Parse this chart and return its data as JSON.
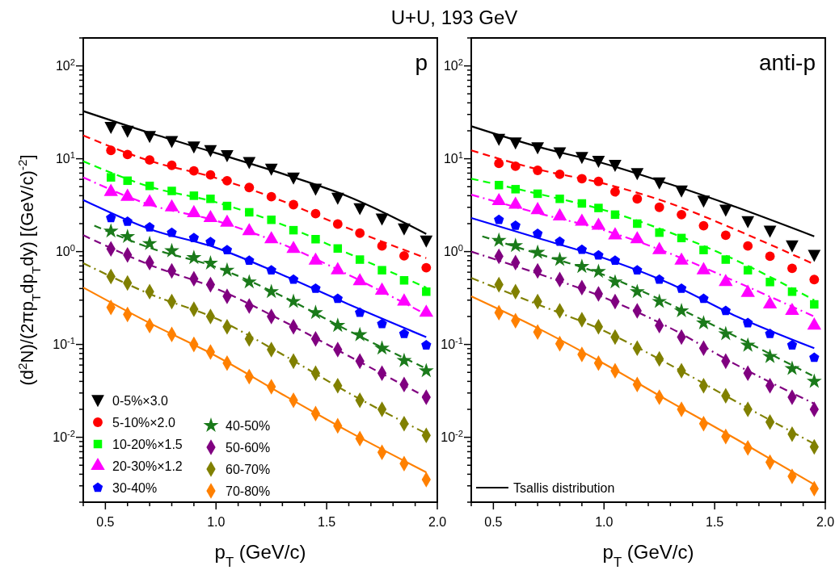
{
  "chart_data": [
    {
      "type": "scatter",
      "title": "U+U, 193 GeV",
      "xlabel": "p$_{T}$ (GeV/c)",
      "ylabel": "(d$^{2}$N)/(2πp$_{T}$dp$_{T}$dy) [(GeV/c)$^{-2}$]",
      "annotations": [
        "p"
      ],
      "log": "y",
      "legend": "bottom left",
      "xlim": [
        0.4,
        2.0
      ],
      "xticks": [
        {
          "value": 0.4,
          "label": null
        },
        {
          "value": 0.5,
          "label": "0.5"
        },
        {
          "value": 0.6,
          "label": null
        },
        {
          "value": 0.7,
          "label": null
        },
        {
          "value": 0.8,
          "label": null
        },
        {
          "value": 0.9,
          "label": null
        },
        {
          "value": 1.0,
          "label": "1.0"
        },
        {
          "value": 1.1,
          "label": null
        },
        {
          "value": 1.2,
          "label": null
        },
        {
          "value": 1.3,
          "label": null
        },
        {
          "value": 1.4,
          "label": null
        },
        {
          "value": 1.5,
          "label": "1.5"
        },
        {
          "value": 1.6,
          "label": null
        },
        {
          "value": 1.7,
          "label": null
        },
        {
          "value": 1.8,
          "label": null
        },
        {
          "value": 1.9,
          "label": null
        },
        {
          "value": 2.0,
          "label": "2.0"
        }
      ],
      "ylim": [
        0.002,
        200
      ],
      "yticks": [
        {
          "value": 0.002,
          "label": null
        },
        {
          "value": 0.003,
          "label": null
        },
        {
          "value": 0.004,
          "label": null
        },
        {
          "value": 0.005,
          "label": null
        },
        {
          "value": 0.006,
          "label": null
        },
        {
          "value": 0.007,
          "label": null
        },
        {
          "value": 0.008,
          "label": null
        },
        {
          "value": 0.009,
          "label": null
        },
        {
          "value": 0.01,
          "label": "10$^{-2}$"
        },
        {
          "value": 0.02,
          "label": null
        },
        {
          "value": 0.03,
          "label": null
        },
        {
          "value": 0.04,
          "label": null
        },
        {
          "value": 0.05,
          "label": null
        },
        {
          "value": 0.06,
          "label": null
        },
        {
          "value": 0.07,
          "label": null
        },
        {
          "value": 0.08,
          "label": null
        },
        {
          "value": 0.09,
          "label": null
        },
        {
          "value": 0.1,
          "label": "10$^{-1}$"
        },
        {
          "value": 0.2,
          "label": null
        },
        {
          "value": 0.3,
          "label": null
        },
        {
          "value": 0.4,
          "label": null
        },
        {
          "value": 0.5,
          "label": null
        },
        {
          "value": 0.6,
          "label": null
        },
        {
          "value": 0.7,
          "label": null
        },
        {
          "value": 0.8,
          "label": null
        },
        {
          "value": 0.9,
          "label": null
        },
        {
          "value": 1,
          "label": "10$^{0}$"
        },
        {
          "value": 2,
          "label": null
        },
        {
          "value": 3,
          "label": null
        },
        {
          "value": 4,
          "label": null
        },
        {
          "value": 5,
          "label": null
        },
        {
          "value": 6,
          "label": null
        },
        {
          "value": 7,
          "label": null
        },
        {
          "value": 8,
          "label": null
        },
        {
          "value": 9,
          "label": null
        },
        {
          "value": 10,
          "label": "10$^{1}$"
        },
        {
          "value": 20,
          "label": null
        },
        {
          "value": 30,
          "label": null
        },
        {
          "value": 40,
          "label": null
        },
        {
          "value": 50,
          "label": null
        },
        {
          "value": 60,
          "label": null
        },
        {
          "value": 70,
          "label": null
        },
        {
          "value": 80,
          "label": null
        },
        {
          "value": 90,
          "label": null
        },
        {
          "value": 100,
          "label": "10$^{2}$"
        },
        {
          "value": 200,
          "label": null
        }
      ],
      "x": [
        0.525,
        0.6,
        0.7,
        0.8,
        0.9,
        0.975,
        1.05,
        1.15,
        1.25,
        1.35,
        1.45,
        1.55,
        1.65,
        1.75,
        1.85,
        1.95
      ],
      "series": [
        {
          "name": "0-5%×3.0",
          "color": "#000000",
          "marker": "triangle-down",
          "values": [
            21.8,
            19.8,
            17.4,
            15.3,
            13.4,
            12.2,
            10.8,
            9.1,
            7.7,
            6.2,
            4.7,
            3.75,
            2.9,
            2.24,
            1.75,
            1.3
          ]
        },
        {
          "name": "5-10%×2.0",
          "color": "#ff0000",
          "marker": "circle",
          "values": [
            12.3,
            11.1,
            9.7,
            8.5,
            7.4,
            6.7,
            5.8,
            4.9,
            3.9,
            3.2,
            2.56,
            1.98,
            1.58,
            1.15,
            0.9,
            0.67
          ]
        },
        {
          "name": "10-20%×1.5",
          "color": "#00ff00",
          "marker": "square",
          "values": [
            6.3,
            5.8,
            5.1,
            4.5,
            4.0,
            3.7,
            3.1,
            2.65,
            2.2,
            1.7,
            1.36,
            1.08,
            0.82,
            0.63,
            0.49,
            0.37
          ]
        },
        {
          "name": "20-30%×1.2",
          "color": "#ff00ff",
          "marker": "triangle",
          "values": [
            4.4,
            3.9,
            3.4,
            3.0,
            2.6,
            2.3,
            2.05,
            1.66,
            1.36,
            1.07,
            0.8,
            0.63,
            0.48,
            0.38,
            0.29,
            0.22
          ]
        },
        {
          "name": "30-40%",
          "color": "#0000ff",
          "values": [
            2.3,
            2.1,
            1.83,
            1.6,
            1.4,
            1.27,
            1.04,
            0.8,
            0.63,
            0.5,
            0.4,
            0.31,
            0.22,
            0.166,
            0.13,
            0.098
          ]
        },
        {
          "name": "40-50%",
          "color": "#1a7a1a",
          "marker": "star",
          "values": [
            1.66,
            1.45,
            1.22,
            1.02,
            0.86,
            0.75,
            0.63,
            0.47,
            0.37,
            0.29,
            0.22,
            0.16,
            0.127,
            0.091,
            0.067,
            0.052
          ]
        },
        {
          "name": "50-60%",
          "color": "#800080",
          "marker": "diamond",
          "values": [
            1.07,
            0.92,
            0.76,
            0.62,
            0.51,
            0.44,
            0.33,
            0.26,
            0.2,
            0.155,
            0.115,
            0.088,
            0.066,
            0.049,
            0.037,
            0.027
          ]
        },
        {
          "name": "60-70%",
          "color": "#808000",
          "marker": "diamond",
          "values": [
            0.54,
            0.46,
            0.37,
            0.29,
            0.24,
            0.2,
            0.155,
            0.115,
            0.088,
            0.066,
            0.049,
            0.036,
            0.025,
            0.02,
            0.014,
            0.0105
          ]
        },
        {
          "name": "70-80%",
          "color": "#ff8000",
          "marker": "diamond",
          "values": [
            0.25,
            0.21,
            0.16,
            0.128,
            0.1,
            0.083,
            0.063,
            0.045,
            0.035,
            0.025,
            0.018,
            0.0133,
            0.0097,
            0.0069,
            0.0052,
            0.0035
          ]
        },
        {
          "type": "line",
          "color": "#000000",
          "line_style": "solid",
          "x": [
            0.4,
            0.7,
            1.0,
            1.3,
            1.6,
            1.95
          ],
          "values": [
            32.6,
            19,
            11.5,
            6.9,
            3.9,
            1.55
          ]
        },
        {
          "type": "line",
          "color": "#ff0000",
          "line_style": "dashed",
          "x": [
            0.4,
            0.7,
            1.0,
            1.3,
            1.6,
            1.95
          ],
          "values": [
            17.8,
            9.5,
            6.2,
            3.5,
            1.77,
            0.85
          ]
        },
        {
          "type": "line",
          "color": "#00ff00",
          "line_style": "dashed",
          "x": [
            0.4,
            0.7,
            1.0,
            1.3,
            1.6,
            1.95
          ],
          "values": [
            9.4,
            5.0,
            3.4,
            1.95,
            0.95,
            0.41
          ]
        },
        {
          "type": "line",
          "color": "#ff00ff",
          "line_style": "dashdot",
          "x": [
            0.4,
            0.7,
            1.0,
            1.3,
            1.6,
            1.95
          ],
          "values": [
            6.3,
            3.2,
            2.15,
            1.2,
            0.56,
            0.21
          ]
        },
        {
          "type": "line",
          "color": "#0000ff",
          "line_style": "solid",
          "x": [
            0.4,
            0.7,
            1.0,
            1.3,
            1.6,
            1.95
          ],
          "values": [
            3.6,
            1.75,
            1.1,
            0.56,
            0.27,
            0.12
          ]
        },
        {
          "type": "line",
          "color": "#1a7a1a",
          "line_style": "dashed",
          "x": [
            0.45,
            0.7,
            1.0,
            1.3,
            1.6,
            1.95
          ],
          "values": [
            1.9,
            1.1,
            0.68,
            0.33,
            0.14,
            0.055
          ]
        },
        {
          "type": "line",
          "color": "#800080",
          "line_style": "dashed",
          "x": [
            0.4,
            0.7,
            1.0,
            1.3,
            1.6,
            1.95
          ],
          "values": [
            1.5,
            0.72,
            0.4,
            0.18,
            0.075,
            0.027
          ]
        },
        {
          "type": "line",
          "color": "#808000",
          "line_style": "dashdot",
          "x": [
            0.4,
            0.7,
            1.0,
            1.3,
            1.6,
            1.95
          ],
          "values": [
            0.75,
            0.35,
            0.19,
            0.078,
            0.03,
            0.011
          ]
        },
        {
          "type": "line",
          "color": "#ff8000",
          "line_style": "solid",
          "x": [
            0.4,
            0.7,
            1.0,
            1.3,
            1.6,
            1.95
          ],
          "values": [
            0.41,
            0.17,
            0.075,
            0.029,
            0.0115,
            0.0042
          ]
        }
      ]
    },
    {
      "type": "scatter",
      "xlabel": "p$_{T}$ (GeV/c)",
      "annotations": [
        "anti-p"
      ],
      "log": "y",
      "legend": "bottom left",
      "xlim": [
        0.4,
        2.0
      ],
      "xticks": [
        {
          "value": 0.4,
          "label": null
        },
        {
          "value": 0.5,
          "label": "0.5"
        },
        {
          "value": 0.6,
          "label": null
        },
        {
          "value": 0.7,
          "label": null
        },
        {
          "value": 0.8,
          "label": null
        },
        {
          "value": 0.9,
          "label": null
        },
        {
          "value": 1.0,
          "label": "1.0"
        },
        {
          "value": 1.1,
          "label": null
        },
        {
          "value": 1.2,
          "label": null
        },
        {
          "value": 1.3,
          "label": null
        },
        {
          "value": 1.4,
          "label": null
        },
        {
          "value": 1.5,
          "label": "1.5"
        },
        {
          "value": 1.6,
          "label": null
        },
        {
          "value": 1.7,
          "label": null
        },
        {
          "value": 1.8,
          "label": null
        },
        {
          "value": 1.9,
          "label": null
        },
        {
          "value": 2.0,
          "label": "2.0"
        }
      ],
      "ylim": [
        0.002,
        200
      ],
      "yticks": [
        {
          "value": 0.002,
          "label": null
        },
        {
          "value": 0.003,
          "label": null
        },
        {
          "value": 0.004,
          "label": null
        },
        {
          "value": 0.005,
          "label": null
        },
        {
          "value": 0.006,
          "label": null
        },
        {
          "value": 0.007,
          "label": null
        },
        {
          "value": 0.008,
          "label": null
        },
        {
          "value": 0.009,
          "label": null
        },
        {
          "value": 0.01,
          "label": "10$^{-2}$"
        },
        {
          "value": 0.02,
          "label": null
        },
        {
          "value": 0.03,
          "label": null
        },
        {
          "value": 0.04,
          "label": null
        },
        {
          "value": 0.05,
          "label": null
        },
        {
          "value": 0.06,
          "label": null
        },
        {
          "value": 0.07,
          "label": null
        },
        {
          "value": 0.08,
          "label": null
        },
        {
          "value": 0.09,
          "label": null
        },
        {
          "value": 0.1,
          "label": "10$^{-1}$"
        },
        {
          "value": 0.2,
          "label": null
        },
        {
          "value": 0.3,
          "label": null
        },
        {
          "value": 0.4,
          "label": null
        },
        {
          "value": 0.5,
          "label": null
        },
        {
          "value": 0.6,
          "label": null
        },
        {
          "value": 0.7,
          "label": null
        },
        {
          "value": 0.8,
          "label": null
        },
        {
          "value": 0.9,
          "label": null
        },
        {
          "value": 1,
          "label": "10$^{0}$"
        },
        {
          "value": 2,
          "label": null
        },
        {
          "value": 3,
          "label": null
        },
        {
          "value": 4,
          "label": null
        },
        {
          "value": 5,
          "label": null
        },
        {
          "value": 6,
          "label": null
        },
        {
          "value": 7,
          "label": null
        },
        {
          "value": 8,
          "label": null
        },
        {
          "value": 9,
          "label": null
        },
        {
          "value": 10,
          "label": "10$^{1}$"
        },
        {
          "value": 20,
          "label": null
        },
        {
          "value": 30,
          "label": null
        },
        {
          "value": 40,
          "label": null
        },
        {
          "value": 50,
          "label": null
        },
        {
          "value": 60,
          "label": null
        },
        {
          "value": 70,
          "label": null
        },
        {
          "value": 80,
          "label": null
        },
        {
          "value": 90,
          "label": null
        },
        {
          "value": 100,
          "label": "10$^{2}$"
        },
        {
          "value": 200,
          "label": null
        }
      ],
      "x": [
        0.525,
        0.6,
        0.7,
        0.8,
        0.9,
        0.975,
        1.05,
        1.15,
        1.25,
        1.35,
        1.45,
        1.55,
        1.65,
        1.75,
        1.85,
        1.95
      ],
      "series": [
        {
          "color": "#000000",
          "marker": "triangle-down",
          "values": [
            16.2,
            14.8,
            13.1,
            11.6,
            10.3,
            9.4,
            8.5,
            6.9,
            5.5,
            4.5,
            3.5,
            2.8,
            2.1,
            1.66,
            1.15,
            0.91
          ]
        },
        {
          "color": "#ff0000",
          "marker": "circle",
          "values": [
            8.9,
            8.3,
            7.5,
            6.8,
            6.1,
            5.7,
            4.4,
            3.7,
            3.0,
            2.5,
            1.9,
            1.5,
            1.15,
            0.89,
            0.66,
            0.5
          ]
        },
        {
          "color": "#00ff00",
          "marker": "square",
          "values": [
            5.2,
            4.7,
            4.2,
            3.7,
            3.3,
            2.95,
            2.5,
            2.0,
            1.6,
            1.4,
            1.04,
            0.82,
            0.63,
            0.47,
            0.37,
            0.27
          ]
        },
        {
          "color": "#ff00ff",
          "marker": "triangle",
          "values": [
            3.5,
            3.2,
            2.8,
            2.4,
            2.1,
            1.9,
            1.5,
            1.36,
            1.04,
            0.8,
            0.63,
            0.47,
            0.36,
            0.27,
            0.23,
            0.16
          ]
        },
        {
          "color": "#0000ff",
          "values": [
            2.2,
            1.9,
            1.56,
            1.28,
            1.05,
            0.91,
            0.8,
            0.63,
            0.5,
            0.4,
            0.31,
            0.23,
            0.17,
            0.13,
            0.098,
            0.072
          ]
        },
        {
          "color": "#1a7a1a",
          "marker": "star",
          "values": [
            1.32,
            1.16,
            0.98,
            0.82,
            0.69,
            0.61,
            0.47,
            0.37,
            0.29,
            0.23,
            0.17,
            0.13,
            0.098,
            0.074,
            0.055,
            0.04
          ]
        },
        {
          "color": "#800080",
          "marker": "diamond",
          "values": [
            0.89,
            0.76,
            0.62,
            0.5,
            0.41,
            0.35,
            0.29,
            0.23,
            0.16,
            0.12,
            0.091,
            0.066,
            0.049,
            0.036,
            0.027,
            0.02
          ]
        },
        {
          "color": "#808000",
          "marker": "diamond",
          "values": [
            0.44,
            0.37,
            0.29,
            0.23,
            0.185,
            0.155,
            0.12,
            0.091,
            0.07,
            0.052,
            0.036,
            0.028,
            0.02,
            0.0146,
            0.0108,
            0.0079
          ]
        },
        {
          "color": "#ff8000",
          "marker": "diamond",
          "values": [
            0.22,
            0.18,
            0.136,
            0.102,
            0.078,
            0.063,
            0.052,
            0.037,
            0.027,
            0.02,
            0.014,
            0.0102,
            0.0077,
            0.0054,
            0.0038,
            0.0028
          ]
        },
        {
          "type": "line",
          "name": "Tsallis distribution",
          "color": "#000000",
          "line_style": "solid",
          "x": [
            0.4,
            0.7,
            1.0,
            1.3,
            1.6,
            1.95
          ],
          "values": [
            22.4,
            13.5,
            8.9,
            5.3,
            3.0,
            1.46
          ]
        },
        {
          "type": "line",
          "color": "#ff0000",
          "line_style": "dashed",
          "x": [
            0.4,
            0.7,
            1.0,
            1.3,
            1.6,
            1.95
          ],
          "values": [
            12.3,
            7.7,
            5.4,
            3.3,
            1.7,
            0.73
          ]
        },
        {
          "type": "line",
          "color": "#00ff00",
          "line_style": "dashed",
          "x": [
            0.4,
            0.7,
            1.0,
            1.3,
            1.6,
            1.95
          ],
          "values": [
            6.1,
            4.2,
            2.8,
            1.6,
            0.8,
            0.3
          ]
        },
        {
          "type": "line",
          "color": "#ff00ff",
          "line_style": "dashdot",
          "x": [
            0.4,
            0.7,
            1.0,
            1.3,
            1.6,
            1.95
          ],
          "values": [
            4.1,
            2.6,
            1.7,
            0.95,
            0.47,
            0.2
          ]
        },
        {
          "type": "line",
          "color": "#0000ff",
          "line_style": "solid",
          "x": [
            0.4,
            0.7,
            1.0,
            1.3,
            1.6,
            1.95
          ],
          "values": [
            2.3,
            1.4,
            0.85,
            0.45,
            0.2,
            0.091
          ]
        },
        {
          "type": "line",
          "color": "#1a7a1a",
          "line_style": "dashed",
          "x": [
            0.45,
            0.7,
            1.0,
            1.3,
            1.6,
            1.95
          ],
          "values": [
            1.46,
            0.95,
            0.56,
            0.27,
            0.12,
            0.045
          ]
        },
        {
          "type": "line",
          "color": "#800080",
          "line_style": "dashdot",
          "x": [
            0.4,
            0.7,
            1.0,
            1.3,
            1.6,
            1.95
          ],
          "values": [
            1.0,
            0.58,
            0.32,
            0.15,
            0.06,
            0.023
          ]
        },
        {
          "type": "line",
          "color": "#808000",
          "line_style": "dashdot",
          "x": [
            0.4,
            0.7,
            1.0,
            1.3,
            1.6,
            1.95
          ],
          "values": [
            0.52,
            0.27,
            0.14,
            0.06,
            0.024,
            0.0085
          ]
        },
        {
          "type": "line",
          "color": "#ff8000",
          "line_style": "solid",
          "x": [
            0.4,
            0.7,
            1.0,
            1.3,
            1.6,
            1.95
          ],
          "values": [
            0.33,
            0.15,
            0.062,
            0.024,
            0.0095,
            0.0031
          ]
        }
      ]
    }
  ]
}
